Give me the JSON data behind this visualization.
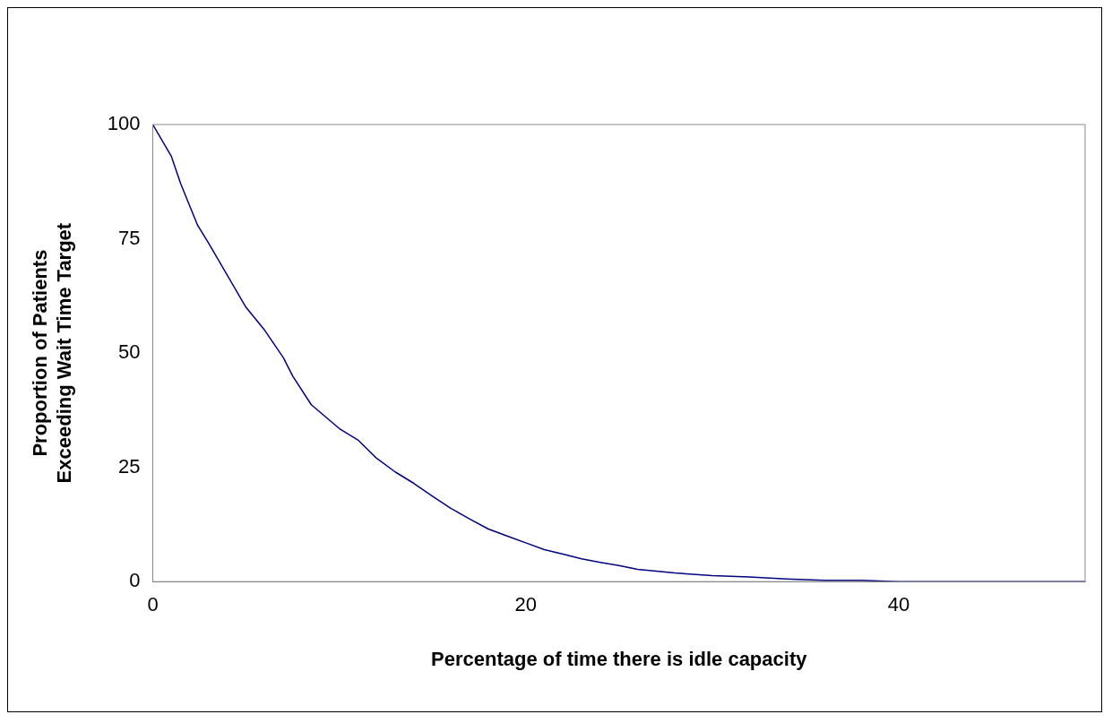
{
  "chart_data": {
    "type": "line",
    "xlabel": "Percentage of time there is idle capacity",
    "ylabel": "Proportion of Patients\nExceeding Wait Time Target",
    "x": [
      0,
      1,
      1.5,
      2.4,
      3,
      4,
      5,
      6,
      7,
      7.5,
      8.5,
      10,
      11,
      12,
      13,
      14,
      15,
      16,
      17,
      18,
      19,
      20,
      21,
      22,
      23,
      24,
      25,
      26,
      28,
      30,
      32,
      34,
      36,
      38,
      40,
      50
    ],
    "series": [
      {
        "color": "#000080",
        "values": [
          100,
          93,
          87,
          78,
          74,
          67,
          60,
          55,
          49,
          45,
          38.7,
          33.5,
          31,
          27,
          24,
          21.5,
          18.7,
          16,
          13.7,
          11.5,
          10,
          8.5,
          7,
          6,
          5,
          4.2,
          3.5,
          2.7,
          1.9,
          1.3,
          1,
          0.6,
          0.3,
          0.3,
          0,
          0
        ]
      }
    ],
    "xlim": [
      0,
      50
    ],
    "xticks": [
      0,
      20,
      40
    ],
    "ylim": [
      0,
      100
    ],
    "yticks": [
      0,
      25,
      50,
      75,
      100
    ],
    "grid": false,
    "legend": false,
    "marker": "none",
    "line_style": "solid"
  }
}
